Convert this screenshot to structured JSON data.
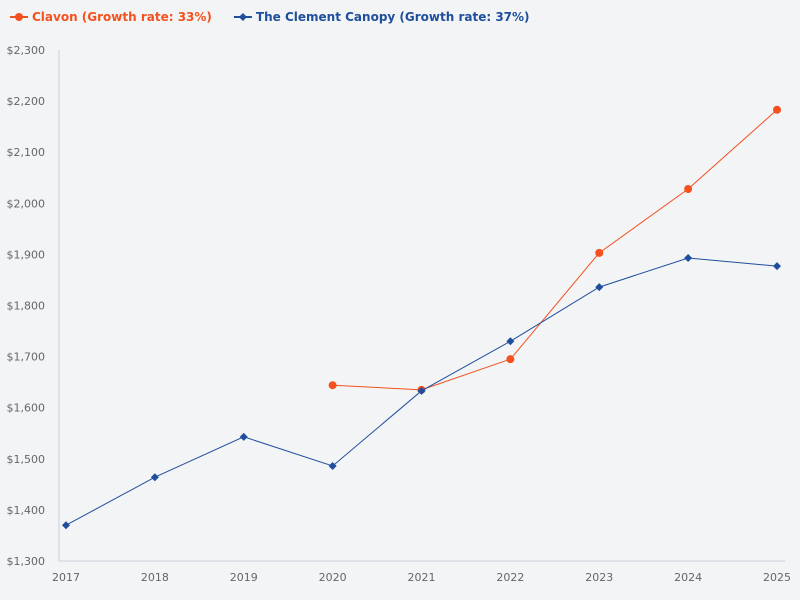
{
  "chart_data": {
    "type": "line",
    "categories": [
      "2017",
      "2018",
      "2019",
      "2020",
      "2021",
      "2022",
      "2023",
      "2024",
      "2025"
    ],
    "ylim": [
      1300,
      2300
    ],
    "yticks": [
      1300,
      1400,
      1500,
      1600,
      1700,
      1800,
      1900,
      2000,
      2100,
      2200,
      2300
    ],
    "ytick_labels": [
      "$1,300",
      "$1,400",
      "$1,500",
      "$1,600",
      "$1,700",
      "$1,800",
      "$1,900",
      "$2,000",
      "$2,100",
      "$2,200",
      "$2,300"
    ],
    "grid": false,
    "legend_position": "top-left",
    "series": [
      {
        "name": "Clavon (Growth rate: 33%)",
        "color": "#f4511e",
        "marker": "circle",
        "values": [
          null,
          null,
          null,
          1644,
          1635,
          1695,
          1903,
          2028,
          2183
        ]
      },
      {
        "name": "The Clement Canopy (Growth rate: 37%)",
        "color": "#1f4e9c",
        "marker": "diamond",
        "values": [
          1370,
          1464,
          1543,
          1486,
          1633,
          1730,
          1836,
          1893,
          1877
        ]
      }
    ]
  }
}
